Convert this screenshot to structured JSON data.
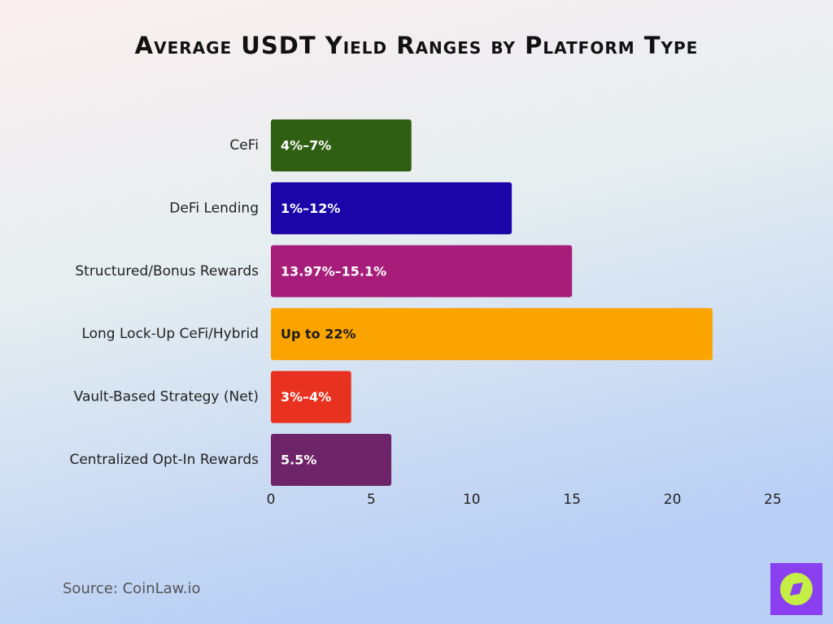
{
  "chart_data": {
    "type": "barh",
    "title": "Average USDT Yield Ranges by Platform Type",
    "categories": [
      "CeFi",
      "DeFi Lending",
      "Structured/Bonus Rewards",
      "Long Lock-Up CeFi/Hybrid",
      "Vault-Based Strategy (Net)",
      "Centralized Opt-In Rewards"
    ],
    "values": [
      7,
      12,
      15,
      22,
      4,
      6
    ],
    "value_labels": [
      "4%–7%",
      "1%–12%",
      "13.97%–15.1%",
      "Up to 22%",
      "3%–4%",
      "5.5%"
    ],
    "colors": [
      "#2f5f12",
      "#1b05a8",
      "#a71d7a",
      "#fba400",
      "#e8321f",
      "#6e2469"
    ],
    "label_colors": [
      "#ffffff",
      "#ffffff",
      "#ffffff",
      "#1a1a1a",
      "#ffffff",
      "#ffffff"
    ],
    "xlim": [
      0,
      25
    ],
    "xticks": [
      0,
      5,
      10,
      15,
      20,
      25
    ],
    "grid": false,
    "source": "Source: CoinLaw.io"
  }
}
